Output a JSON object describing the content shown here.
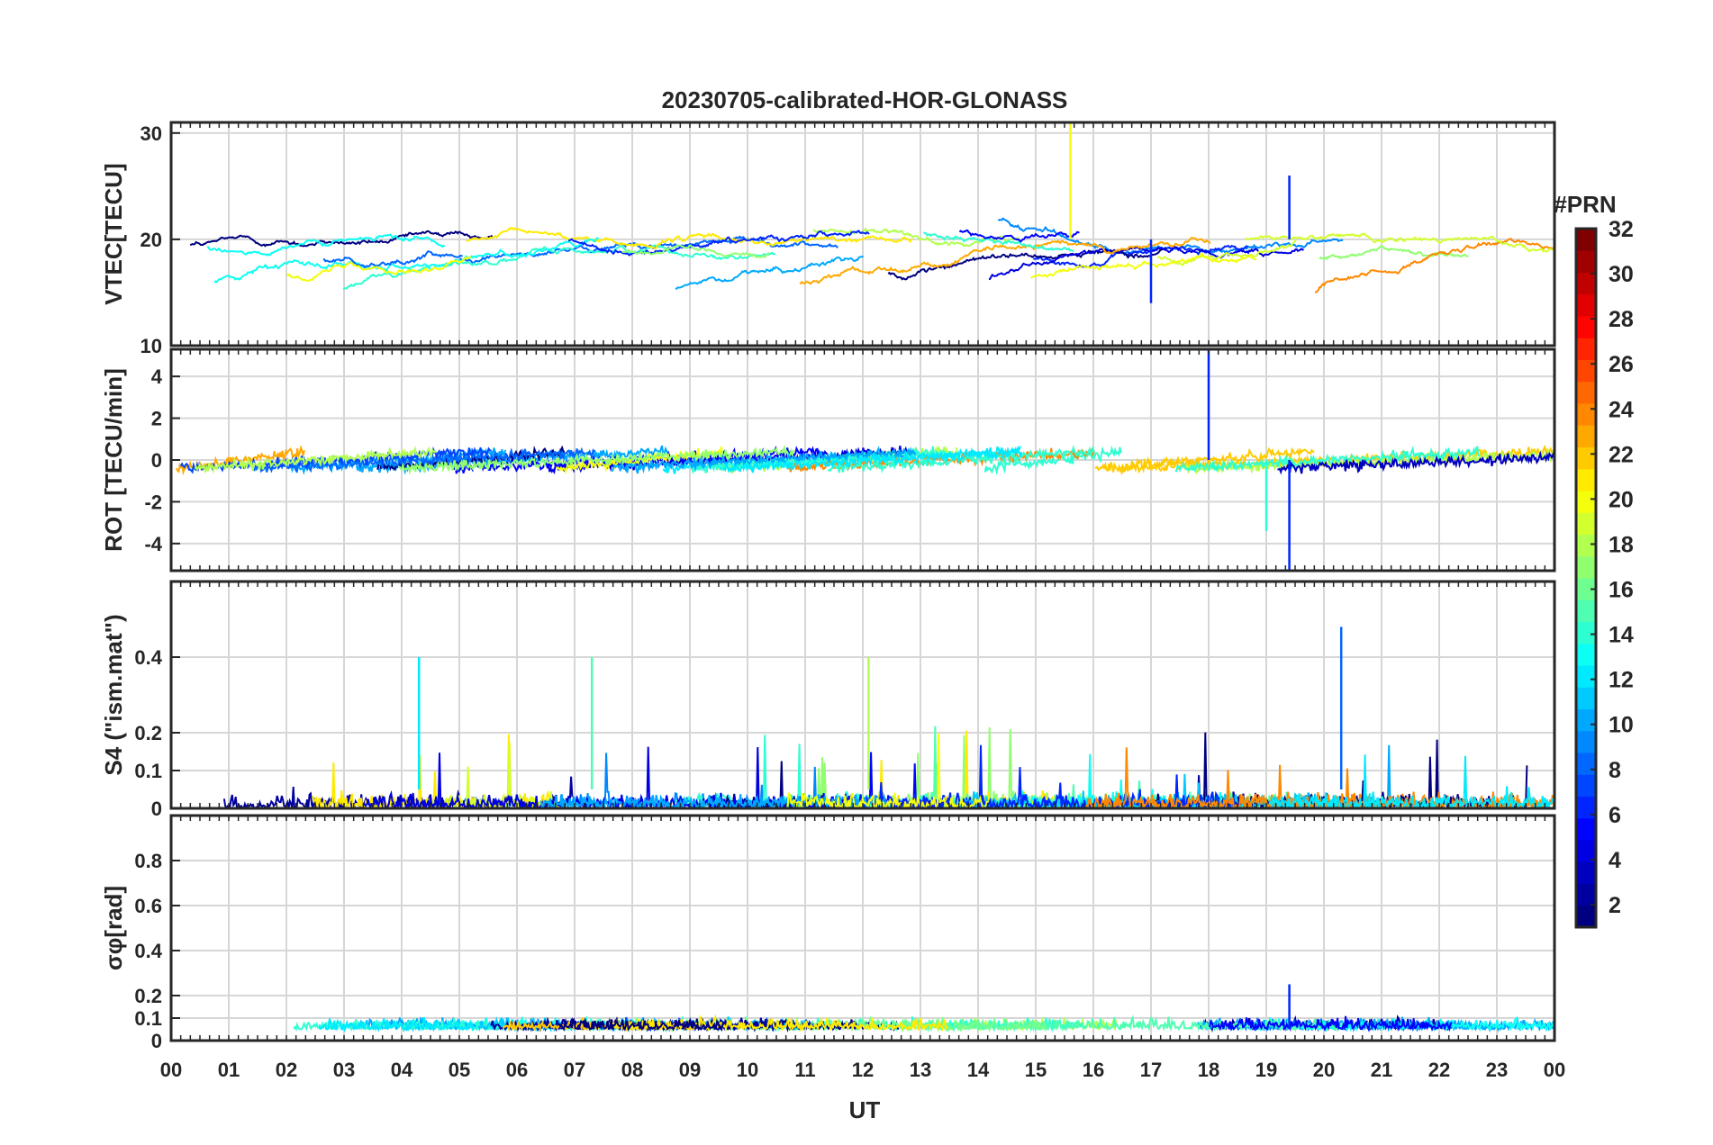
{
  "title": "20230705-calibrated-HOR-GLONASS",
  "xlabel": "UT",
  "x_ticks": [
    "00",
    "01",
    "02",
    "03",
    "04",
    "05",
    "06",
    "07",
    "08",
    "09",
    "10",
    "11",
    "12",
    "13",
    "14",
    "15",
    "16",
    "17",
    "18",
    "19",
    "20",
    "21",
    "22",
    "23",
    "00"
  ],
  "colorbar": {
    "title": "#PRN",
    "range": [
      1,
      32
    ],
    "ticks": [
      2,
      4,
      6,
      8,
      10,
      12,
      14,
      16,
      18,
      20,
      22,
      24,
      26,
      28,
      30,
      32
    ],
    "colormap": "jet"
  },
  "chart_data": [
    {
      "type": "line",
      "panel": "vtec",
      "ylabel": "VTEC[TECU]",
      "ylim": [
        10,
        31
      ],
      "yticks": [
        10,
        20,
        30
      ],
      "ytick_labels": [
        "10",
        "20",
        "30"
      ],
      "x_range_hours": [
        0,
        24
      ],
      "series_by_prn": true,
      "typical_range": [
        14,
        25
      ],
      "notable_events": [
        {
          "x": 15.6,
          "y": 31,
          "prn": 20
        },
        {
          "x": 17.0,
          "y": 14,
          "prn": 6
        },
        {
          "x": 19.4,
          "y": 26,
          "prn": 6
        }
      ]
    },
    {
      "type": "line",
      "panel": "rot",
      "ylabel": "ROT [TECU/min]",
      "ylim": [
        -5.3,
        5.3
      ],
      "yticks": [
        -4,
        -2,
        0,
        2,
        4
      ],
      "ytick_labels": [
        "-4",
        "-2",
        "0",
        "2",
        "4"
      ],
      "x_range_hours": [
        0,
        24
      ],
      "series_by_prn": true,
      "typical_range": [
        -1.5,
        1.5
      ],
      "notable_events": [
        {
          "x": 18.0,
          "y": 5.3,
          "prn": 6
        },
        {
          "x": 19.4,
          "y": -5.3,
          "prn": 6
        },
        {
          "x": 19.0,
          "y": -3.4,
          "prn": 14
        }
      ]
    },
    {
      "type": "line",
      "panel": "s4",
      "ylabel": "S4 (\"ism.mat\")",
      "ylim": [
        0,
        0.6
      ],
      "yticks": [
        0,
        0.1,
        0.2,
        0.4
      ],
      "ytick_labels": [
        "0",
        "0.1",
        "0.2",
        "0.4"
      ],
      "x_range_hours": [
        0,
        24
      ],
      "series_by_prn": true,
      "typical_range": [
        0,
        0.1
      ],
      "notable_events": [
        {
          "x": 20.3,
          "y": 0.48,
          "prn": 8
        },
        {
          "x": 12.1,
          "y": 0.4,
          "prn": 18
        },
        {
          "x": 4.3,
          "y": 0.4,
          "prn": 12
        },
        {
          "x": 7.3,
          "y": 0.4,
          "prn": 15
        }
      ]
    },
    {
      "type": "line",
      "panel": "sigma_phi",
      "ylabel": "σφ[rad]",
      "ylim": [
        0,
        1.0
      ],
      "yticks": [
        0,
        0.1,
        0.2,
        0.4,
        0.6,
        0.8
      ],
      "ytick_labels": [
        "0",
        "0.1",
        "0.2",
        "0.4",
        "0.6",
        "0.8"
      ],
      "x_range_hours": [
        0,
        24
      ],
      "series_by_prn": true,
      "typical_range": [
        0.02,
        0.15
      ],
      "notable_events": [
        {
          "x": 19.4,
          "y": 0.25,
          "prn": 6
        }
      ]
    }
  ]
}
